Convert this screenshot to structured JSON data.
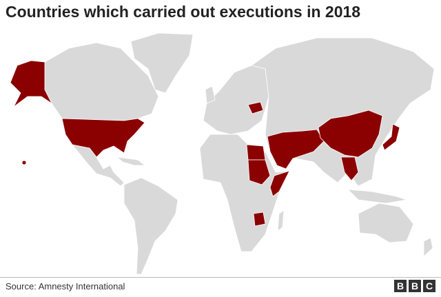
{
  "header": {
    "title": "Countries which carried out executions in 2018"
  },
  "footer": {
    "source": "Source: Amnesty International",
    "logo": [
      "B",
      "B",
      "C"
    ]
  }
}
